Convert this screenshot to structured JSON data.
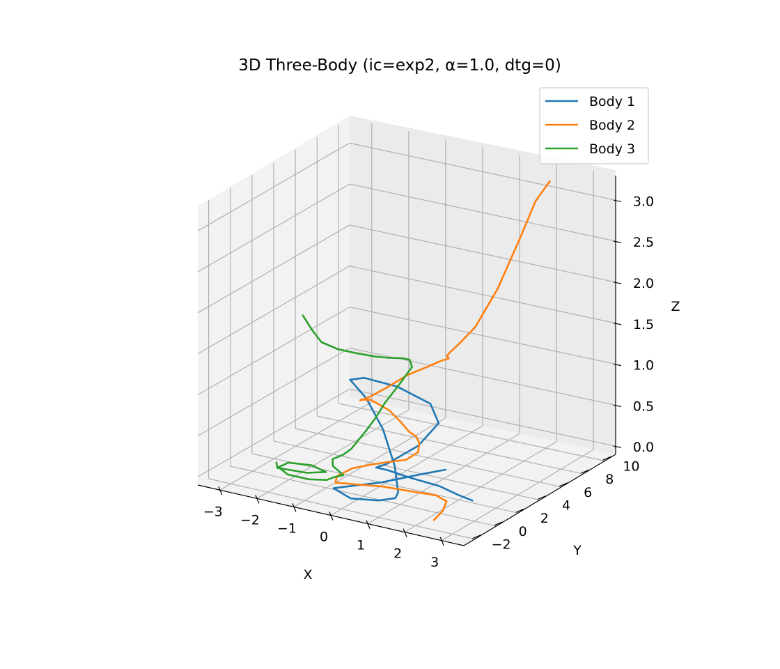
{
  "chart_data": {
    "type": "line",
    "projection": "3d",
    "title": "3D Three-Body (ic=exp2, α=1.0, dtg=0)",
    "xlabel": "X",
    "ylabel": "Y",
    "zlabel": "Z",
    "xticks": [
      "−3",
      "−2",
      "−1",
      "0",
      "1",
      "2",
      "3"
    ],
    "yticks": [
      "−2",
      "0",
      "2",
      "4",
      "6",
      "8",
      "10"
    ],
    "zticks": [
      "0.0",
      "0.5",
      "1.0",
      "1.5",
      "2.0",
      "2.5",
      "3.0"
    ],
    "xlim": [
      -3.6,
      3.6
    ],
    "ylim": [
      -3,
      11
    ],
    "zlim": [
      -0.1,
      3.3
    ],
    "grid": true,
    "legend_position": "top-right",
    "series": [
      {
        "name": "Body 1",
        "color": "#1f77b4",
        "points": [
          [
            1.2,
            3.5,
            0.07
          ],
          [
            0.8,
            2.5,
            0.05
          ],
          [
            0.2,
            1,
            0.01
          ],
          [
            -0.4,
            0,
            -0.02
          ],
          [
            -0.6,
            -0.7,
            -0.01
          ],
          [
            0.1,
            -1.5,
            0
          ],
          [
            0.8,
            -1.3,
            0.03
          ],
          [
            1.1,
            -0.8,
            0.05
          ],
          [
            1.0,
            -0.2,
            0.06
          ],
          [
            0.5,
            1.2,
            0.22
          ],
          [
            -0.2,
            2.5,
            0.5
          ],
          [
            -0.8,
            3,
            0.78
          ],
          [
            -1.2,
            3.2,
            0.9
          ],
          [
            -1.3,
            3.2,
            0.94
          ],
          [
            -1,
            3.5,
            0.97
          ],
          [
            -0.2,
            3.8,
            0.92
          ],
          [
            0.7,
            3.8,
            0.8
          ],
          [
            1.1,
            3.2,
            0.65
          ],
          [
            0.9,
            2,
            0.45
          ],
          [
            0.4,
            0.8,
            0.27
          ],
          [
            0.2,
            0.5,
            0.23
          ],
          [
            0.5,
            0.5,
            0.23
          ],
          [
            1.2,
            0.3,
            0.22
          ],
          [
            2.0,
            0.2,
            0.21
          ],
          [
            2.6,
            -0.2,
            0.2
          ],
          [
            3.1,
            -0.5,
            0.2
          ]
        ]
      },
      {
        "name": "Body 2",
        "color": "#ff7f0e",
        "points": [
          [
            2.5,
            -2,
            0.02
          ],
          [
            2.5,
            -1.2,
            0.07
          ],
          [
            2.4,
            -0.5,
            0.12
          ],
          [
            2.0,
            -0.1,
            0.12
          ],
          [
            1.3,
            -0.1,
            0.1
          ],
          [
            0.5,
            0.1,
            0.06
          ],
          [
            -0.1,
            0,
            0.03
          ],
          [
            -0.7,
            -0.2,
            0.01
          ],
          [
            -0.8,
            0.3,
            0.04
          ],
          [
            -0.6,
            1,
            0.1
          ],
          [
            -0.2,
            1.5,
            0.15
          ],
          [
            0.2,
            1.8,
            0.2
          ],
          [
            0.5,
            2.2,
            0.22
          ],
          [
            0.6,
            3,
            0.26
          ],
          [
            0.4,
            3.8,
            0.29
          ],
          [
            0.2,
            4.2,
            0.32
          ],
          [
            0.1,
            4.2,
            0.34
          ],
          [
            0,
            4.2,
            0.36
          ],
          [
            -0.3,
            4.5,
            0.42
          ],
          [
            -0.7,
            4.8,
            0.5
          ],
          [
            -1.2,
            4.8,
            0.58
          ],
          [
            -1.3,
            4.2,
            0.62
          ],
          [
            -1.2,
            3.8,
            0.65
          ],
          [
            -1.0,
            4.0,
            0.7
          ],
          [
            -0.7,
            4.5,
            0.8
          ],
          [
            -0.3,
            5.1,
            0.95
          ],
          [
            0.1,
            5.7,
            1.05
          ],
          [
            0.3,
            6.2,
            1.1
          ],
          [
            0.4,
            6.5,
            1.11
          ],
          [
            0.3,
            6.7,
            1.12
          ],
          [
            0.35,
            6.8,
            1.16
          ],
          [
            0.5,
            7.1,
            1.25
          ],
          [
            0.8,
            7.6,
            1.45
          ],
          [
            1.2,
            8.3,
            1.9
          ],
          [
            1.6,
            9.0,
            2.5
          ],
          [
            1.9,
            9.4,
            2.95
          ],
          [
            2.2,
            9.7,
            3.2
          ]
        ]
      },
      {
        "name": "Body 3",
        "color": "#2ca02c",
        "points": [
          [
            -3.4,
            6,
            1.3
          ],
          [
            -3,
            5.5,
            1.2
          ],
          [
            -2.6,
            5,
            1.13
          ],
          [
            -2.1,
            4.8,
            1.11
          ],
          [
            -1.6,
            4.8,
            1.11
          ],
          [
            -1.1,
            4.9,
            1.11
          ],
          [
            -0.8,
            5.1,
            1.11
          ],
          [
            -0.5,
            5.3,
            1.12
          ],
          [
            -0.3,
            5.3,
            1.12
          ],
          [
            -0.18,
            5.1,
            1.06
          ],
          [
            -0.3,
            4.4,
            0.9
          ],
          [
            -0.5,
            3.7,
            0.7
          ],
          [
            -0.6,
            3.2,
            0.55
          ],
          [
            -0.7,
            2.6,
            0.42
          ],
          [
            -0.8,
            1.6,
            0.27
          ],
          [
            -0.9,
            1.2,
            0.22
          ],
          [
            -1.1,
            0.9,
            0.17
          ],
          [
            -1.0,
            0.6,
            0.12
          ],
          [
            -0.8,
            0.4,
            0.1
          ],
          [
            -0.6,
            0.2,
            0.08
          ],
          [
            -0.8,
            0,
            0.05
          ],
          [
            -0.9,
            -0.3,
            0.03
          ],
          [
            -1.3,
            -0.6,
            0.02
          ],
          [
            -1.9,
            -0.5,
            0.01
          ],
          [
            -2.3,
            0,
            0.02
          ],
          [
            -2.2,
            0.6,
            0.04
          ],
          [
            -1.6,
            0.7,
            0.06
          ],
          [
            -1.1,
            0.3,
            0.06
          ],
          [
            -1.5,
            -0.1,
            0.04
          ],
          [
            -2.3,
            -0.1,
            0.02
          ],
          [
            -2.5,
            0.5,
            0.02
          ]
        ]
      }
    ]
  }
}
